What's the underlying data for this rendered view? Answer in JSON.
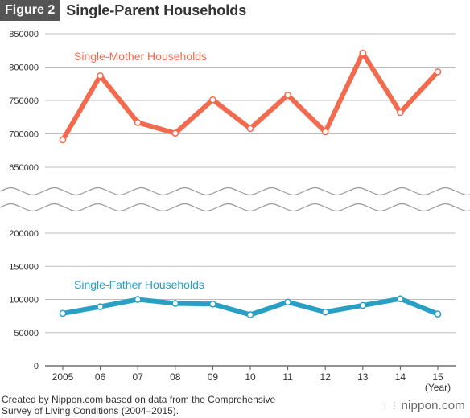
{
  "header": {
    "figure_label": "Figure 2",
    "title": "Single-Parent Households"
  },
  "chart_data": {
    "type": "line",
    "title": "Single-Parent Households",
    "categories": [
      "2005",
      "06",
      "07",
      "08",
      "09",
      "10",
      "11",
      "12",
      "13",
      "14",
      "15"
    ],
    "x_unit_label": "(Year)",
    "y_ticks_upper": [
      "850000",
      "800000",
      "750000",
      "700000",
      "650000"
    ],
    "y_ticks_lower": [
      "200000",
      "150000",
      "100000",
      "50000",
      "0"
    ],
    "y_upper_range": [
      650000,
      850000
    ],
    "y_lower_range": [
      0,
      200000
    ],
    "axis_break": "between 650000 and 200000",
    "grid": true,
    "series": [
      {
        "name": "Single-Mother Households",
        "color": "#f26b4f",
        "values": [
          691000,
          787000,
          717000,
          701000,
          751000,
          708000,
          758000,
          703000,
          821000,
          732000,
          793000
        ]
      },
      {
        "name": "Single-Father Households",
        "color": "#2a9fc4",
        "values": [
          79000,
          89000,
          100000,
          94000,
          93000,
          77000,
          96000,
          81000,
          91000,
          101000,
          78000
        ]
      }
    ]
  },
  "footer": {
    "source_line1": "Created by Nippon.com based on data from the Comprehensive",
    "source_line2": "Survey of Living Conditions (2004–2015).",
    "brand_icon": "nippon-logo-icon",
    "brand": "nippon.com"
  }
}
